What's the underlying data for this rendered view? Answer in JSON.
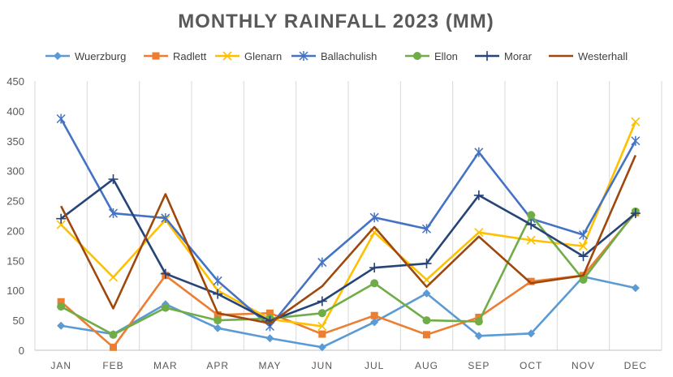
{
  "chart_data": {
    "type": "line",
    "title": "MONTHLY RAINFALL 2023 (MM)",
    "xlabel": "",
    "ylabel": "",
    "ylim": [
      0,
      450
    ],
    "yticks": [
      0,
      50,
      100,
      150,
      200,
      250,
      300,
      350,
      400,
      450
    ],
    "grid": "vertical",
    "legend_position": "top",
    "categories": [
      "JAN",
      "FEB",
      "MAR",
      "APR",
      "MAY",
      "JUN",
      "JUL",
      "AUG",
      "SEP",
      "OCT",
      "NOV",
      "DEC"
    ],
    "series": [
      {
        "name": "Wuerzburg",
        "color": "#5B9BD5",
        "marker": "diamond",
        "values": [
          41,
          27,
          77,
          37,
          20,
          5,
          47,
          95,
          24,
          28,
          123,
          104
        ]
      },
      {
        "name": "Radlett",
        "color": "#ED7D31",
        "marker": "square",
        "values": [
          81,
          5,
          125,
          59,
          62,
          27,
          58,
          26,
          55,
          115,
          125,
          230
        ]
      },
      {
        "name": "Glenarn",
        "color": "#FFC000",
        "marker": "x",
        "values": [
          210,
          122,
          218,
          100,
          52,
          40,
          197,
          118,
          197,
          184,
          174,
          382
        ]
      },
      {
        "name": "Ballachulish",
        "color": "#4472C4",
        "marker": "star",
        "values": [
          387,
          229,
          221,
          116,
          40,
          147,
          222,
          203,
          331,
          220,
          193,
          350
        ]
      },
      {
        "name": "Ellon",
        "color": "#70AD47",
        "marker": "circle",
        "values": [
          73,
          26,
          71,
          50,
          53,
          62,
          112,
          50,
          48,
          226,
          118,
          232
        ]
      },
      {
        "name": "Morar",
        "color": "#264478",
        "marker": "plus",
        "values": [
          220,
          286,
          128,
          94,
          49,
          82,
          138,
          145,
          259,
          210,
          157,
          229
        ]
      },
      {
        "name": "Westerhall",
        "color": "#9E480E",
        "marker": "none",
        "values": [
          241,
          70,
          261,
          62,
          45,
          107,
          206,
          106,
          190,
          112,
          125,
          326
        ]
      }
    ]
  }
}
